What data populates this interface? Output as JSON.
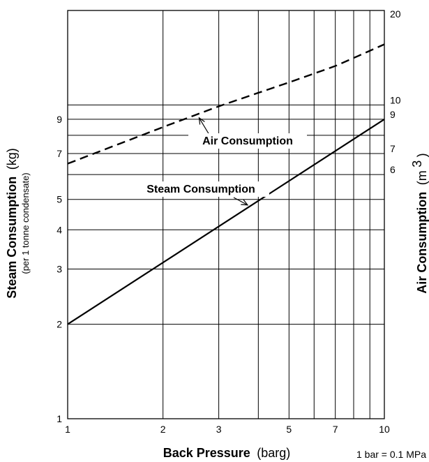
{
  "chart_data": {
    "type": "line",
    "x_scale": "log",
    "y_scale": "log",
    "grid": true,
    "xlabel": {
      "main": "Back Pressure",
      "unit": "(barg)"
    },
    "ylabel_left": {
      "main": "Steam Consumption",
      "unit": "(kg)",
      "sub": "(per 1 tonne condensate)"
    },
    "ylabel_right": {
      "main": "Air Consumption",
      "unit": "(m",
      "sup": "3",
      "close": ")"
    },
    "note": "1 bar = 0.1 MPa",
    "x_ticks": [
      1,
      2,
      3,
      5,
      7,
      10
    ],
    "x_gridlines": [
      1,
      2,
      3,
      4,
      5,
      6,
      7,
      8,
      9,
      10
    ],
    "xlim": [
      1,
      10
    ],
    "left_axis": {
      "ylim": [
        1,
        20
      ],
      "ticks": [
        1,
        2,
        3,
        4,
        5,
        7,
        9
      ],
      "gridlines": [
        1,
        2,
        3,
        4,
        5,
        6,
        7,
        8,
        9,
        10,
        20
      ]
    },
    "right_axis": {
      "ylim": [
        1,
        20
      ],
      "ticks": [
        6,
        7,
        9,
        10,
        20
      ]
    },
    "series": [
      {
        "name": "Steam Consumption",
        "axis": "left",
        "style": "solid",
        "x": [
          1,
          10
        ],
        "y": [
          2.0,
          9.0
        ]
      },
      {
        "name": "Air Consumption",
        "axis": "right",
        "style": "dashed",
        "x": [
          1,
          2,
          3,
          5,
          7,
          10
        ],
        "y": [
          6.5,
          8.5,
          9.9,
          11.8,
          13.3,
          15.6
        ]
      }
    ],
    "annotations": [
      {
        "text": "Air Consumption",
        "series": "Air Consumption",
        "pointer_x": 2.6
      },
      {
        "text": "Steam Consumption",
        "series": "Steam Consumption",
        "pointer_x": 3.7
      }
    ]
  }
}
